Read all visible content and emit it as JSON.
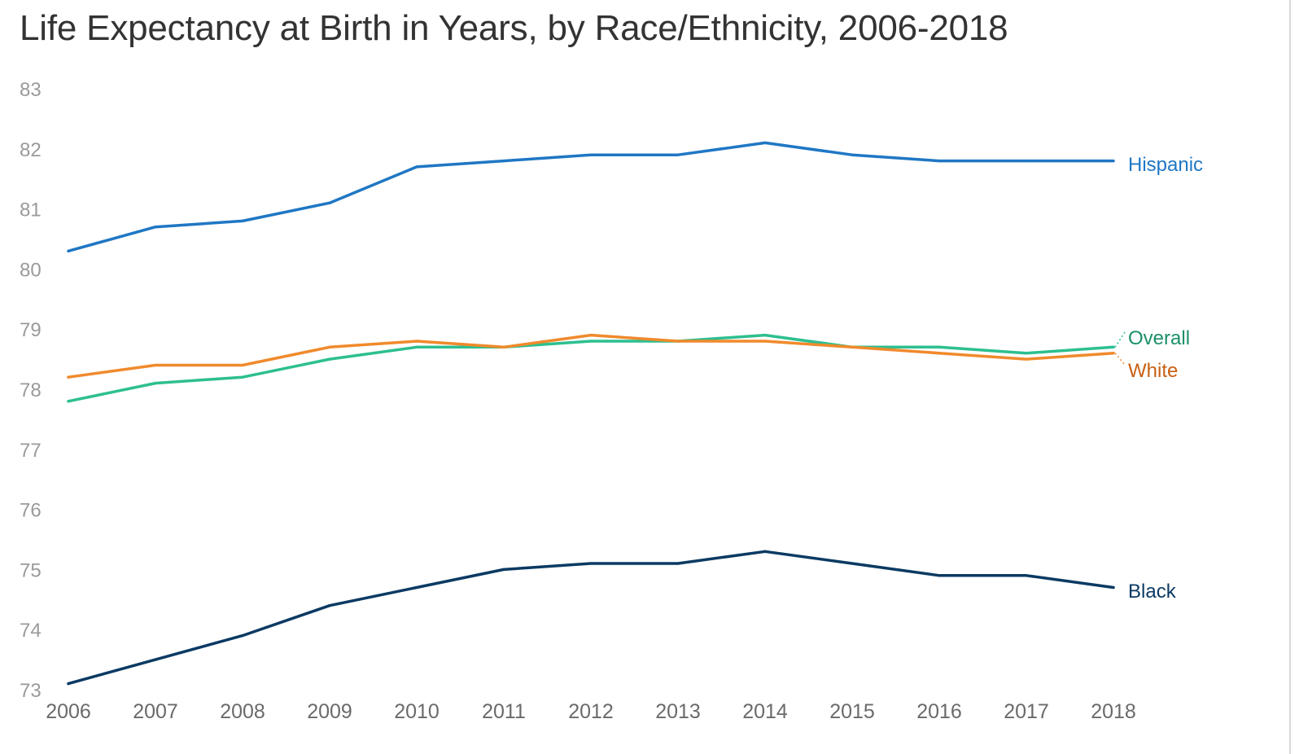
{
  "chart_data": {
    "type": "line",
    "title": "Life Expectancy at Birth in Years, by Race/Ethnicity, 2006-2018",
    "xlabel": "",
    "ylabel": "",
    "x": [
      2006,
      2007,
      2008,
      2009,
      2010,
      2011,
      2012,
      2013,
      2014,
      2015,
      2016,
      2017,
      2018
    ],
    "ylim": [
      73,
      83
    ],
    "yticks": [
      73,
      74,
      75,
      76,
      77,
      78,
      79,
      80,
      81,
      82,
      83
    ],
    "grid": false,
    "legend": "direct labels at right end of lines",
    "series": [
      {
        "name": "Hispanic",
        "color": "#1f77c4",
        "label_color": "#1f77c4",
        "values": [
          80.3,
          80.7,
          80.8,
          81.1,
          81.7,
          81.8,
          81.9,
          81.9,
          82.1,
          81.9,
          81.8,
          81.8,
          81.8
        ]
      },
      {
        "name": "Overall",
        "color": "#2dbf8f",
        "label_color": "#1a8f6a",
        "values": [
          77.8,
          78.1,
          78.2,
          78.5,
          78.7,
          78.7,
          78.8,
          78.8,
          78.9,
          78.7,
          78.7,
          78.6,
          78.7
        ]
      },
      {
        "name": "White",
        "color": "#f08a2c",
        "label_color": "#c85f12",
        "values": [
          78.2,
          78.4,
          78.4,
          78.7,
          78.8,
          78.7,
          78.9,
          78.8,
          78.8,
          78.7,
          78.6,
          78.5,
          78.6
        ]
      },
      {
        "name": "Black",
        "color": "#0b3a63",
        "label_color": "#0b3a63",
        "values": [
          73.1,
          73.5,
          73.9,
          74.4,
          74.7,
          75.0,
          75.1,
          75.1,
          75.3,
          75.1,
          74.9,
          74.9,
          74.7
        ]
      }
    ]
  }
}
